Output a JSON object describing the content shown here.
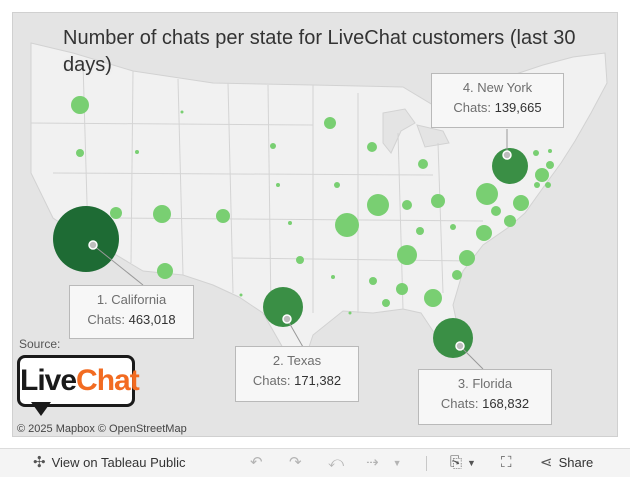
{
  "title": "Number of chats per state for LiveChat customers (last 30 days)",
  "callouts": [
    {
      "id": "california",
      "name": "1. California",
      "label": "Chats:",
      "value": "463,018"
    },
    {
      "id": "texas",
      "name": "2. Texas",
      "label": "Chats:",
      "value": "171,382"
    },
    {
      "id": "florida",
      "name": "3. Florida",
      "label": "Chats:",
      "value": "168,832"
    },
    {
      "id": "new-york",
      "name": "4. New York",
      "label": "Chats:",
      "value": "139,665"
    }
  ],
  "top_states": [
    {
      "state": "California",
      "chats": 463018
    },
    {
      "state": "Texas",
      "chats": 171382
    },
    {
      "state": "Florida",
      "chats": 168832
    },
    {
      "state": "New York",
      "chats": 139665
    }
  ],
  "source_label": "Source:",
  "logo": {
    "live": "Live",
    "chat": "Chat"
  },
  "attribution": "© 2025 Mapbox © OpenStreetMap",
  "toolbar": {
    "view_label": "View on Tableau Public",
    "share_label": "Share",
    "icons": [
      "tableau-icon",
      "undo-icon",
      "redo-icon",
      "revert-icon",
      "refresh-icon",
      "download-icon",
      "fullscreen-icon",
      "share-icon"
    ]
  },
  "colors": {
    "background": "#e4e4e4",
    "land": "#f1f1f1",
    "light_bubble": "#79cf72",
    "dark_bubble": "#1e6b34",
    "mid_bubble": "#3d9a4b"
  }
}
